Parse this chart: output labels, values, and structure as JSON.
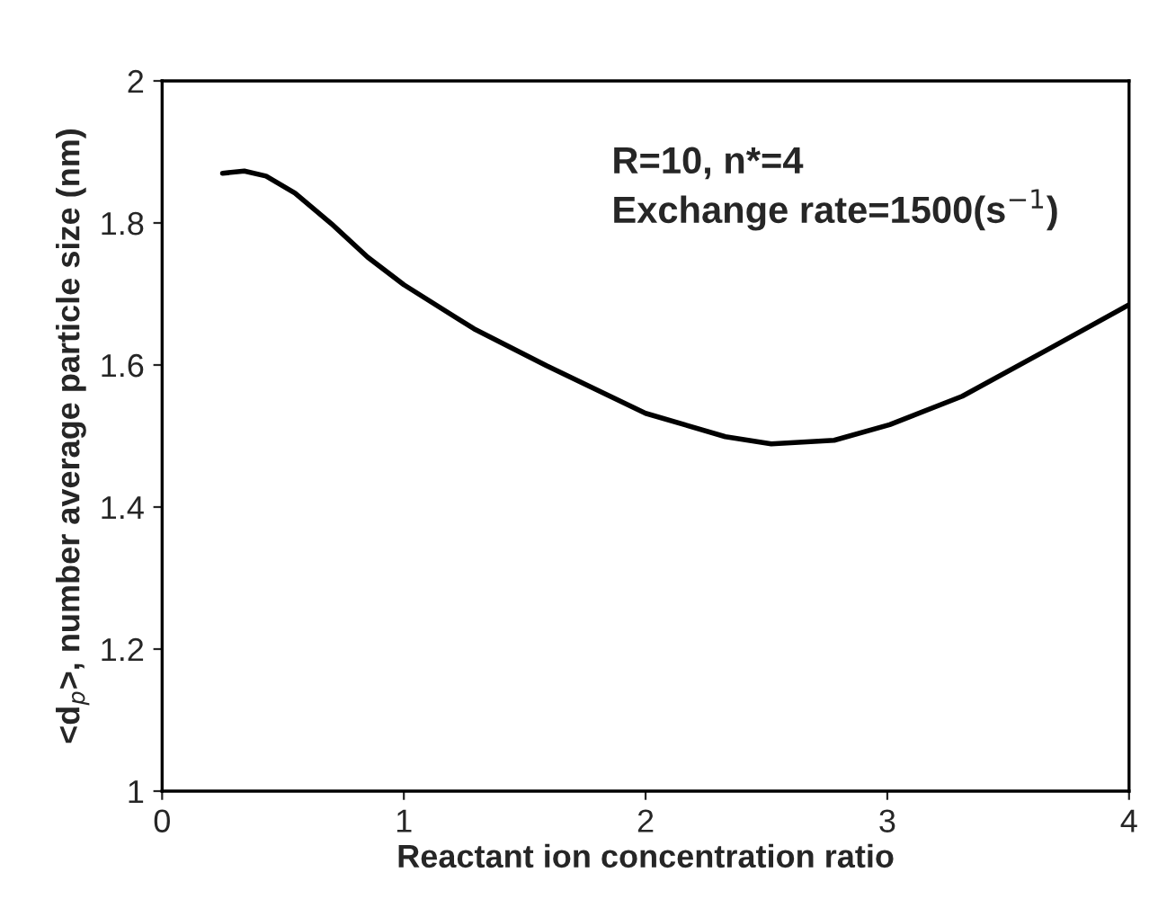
{
  "chart_data": {
    "type": "line",
    "xlabel": "Reactant ion concentration ratio",
    "ylabel": "<d$_{p}$>, number average particle size (nm)",
    "annotations": [
      "R=10, n*=4",
      "Exchange rate=1500(s$^{−1}$)"
    ],
    "series": [
      {
        "color": "#000000",
        "x": [
          0.25,
          0.34,
          0.43,
          0.55,
          0.7,
          0.85,
          1.0,
          1.29,
          1.59,
          2.0,
          2.33,
          2.52,
          2.78,
          3.01,
          3.31,
          3.67,
          4.0
        ],
        "values": [
          1.87,
          1.873,
          1.866,
          1.842,
          1.799,
          1.752,
          1.713,
          1.651,
          1.599,
          1.532,
          1.499,
          1.489,
          1.494,
          1.516,
          1.556,
          1.623,
          1.685
        ]
      }
    ],
    "xlim": [
      0,
      4
    ],
    "xticks": [
      0,
      1,
      2,
      3,
      4
    ],
    "ylim": [
      1,
      2
    ],
    "yticks": [
      1,
      1.2,
      1.4,
      1.6,
      1.8,
      2
    ],
    "grid": false,
    "legend": false,
    "marker": "none",
    "line_style": "solid"
  }
}
